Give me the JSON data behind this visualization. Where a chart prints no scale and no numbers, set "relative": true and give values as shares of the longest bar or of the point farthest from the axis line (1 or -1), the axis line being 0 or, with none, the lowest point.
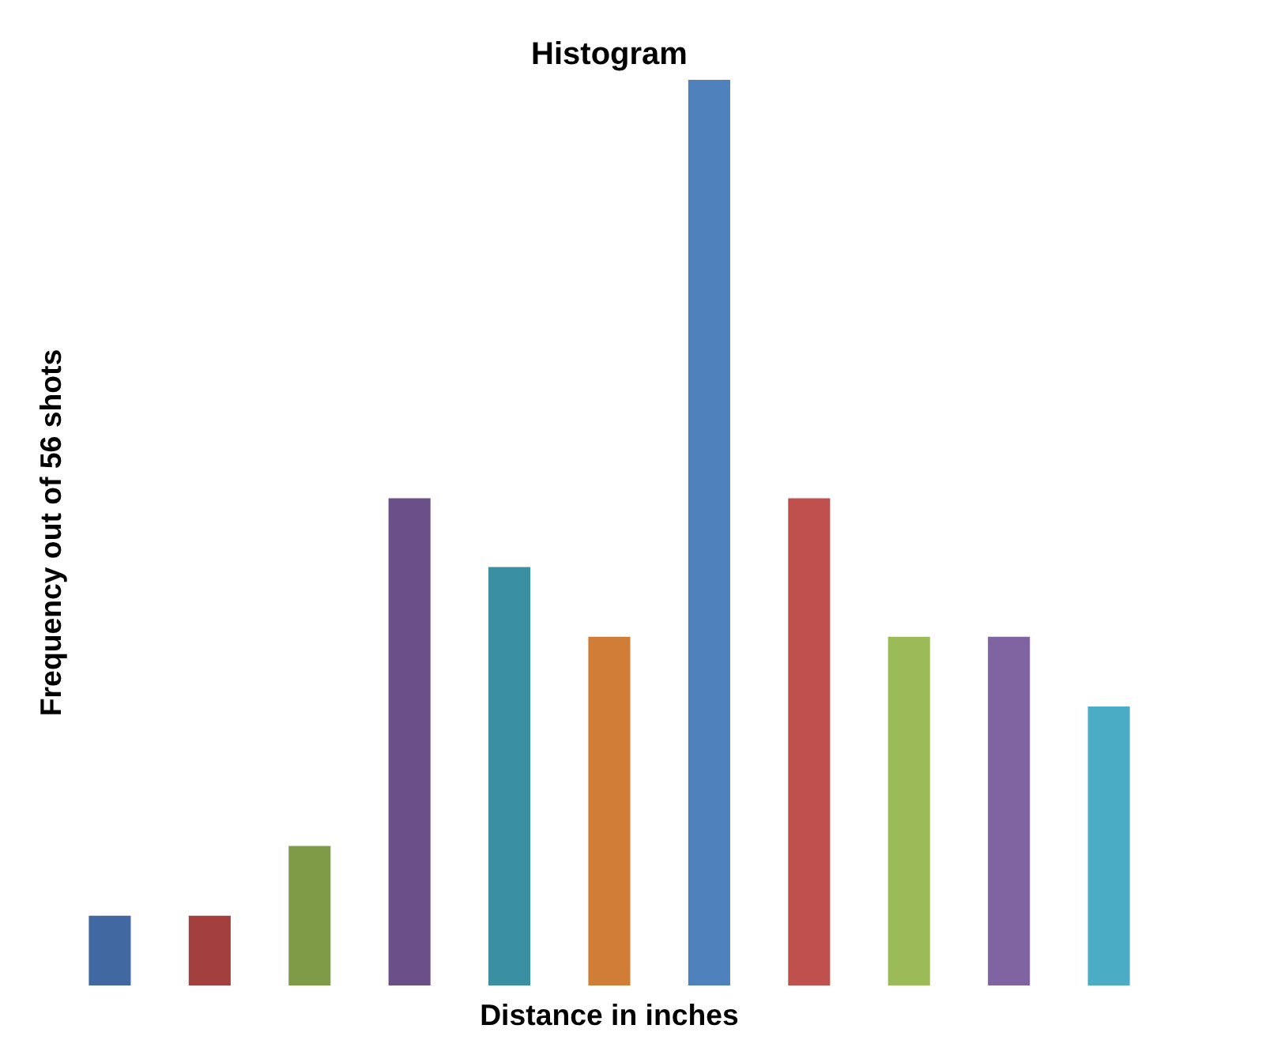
{
  "chart_data": {
    "type": "bar",
    "title": "Histogram",
    "xlabel": "Distance in inches",
    "ylabel": "Frequency out of 56 shots",
    "relative": true,
    "categories": [
      null,
      null,
      null,
      null,
      null,
      null,
      null,
      null,
      null,
      null,
      null
    ],
    "values": [
      0.077,
      0.077,
      0.154,
      0.538,
      0.462,
      0.385,
      1,
      0.538,
      0.385,
      0.385,
      0.308
    ],
    "colors": [
      "#4168a0",
      "#a3403e",
      "#7e9b48",
      "#6a4f88",
      "#3b8fa3",
      "#d07d38",
      "#4f81bd",
      "#c0504d",
      "#9bbb59",
      "#8064a2",
      "#4bacc6"
    ],
    "grid": false
  }
}
